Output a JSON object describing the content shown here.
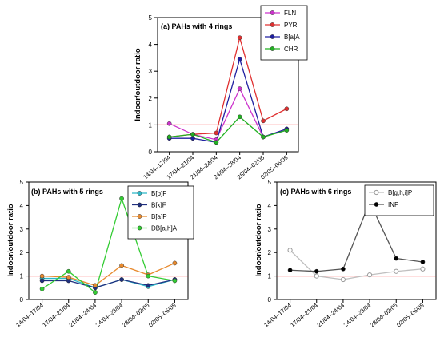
{
  "chart_data": [
    {
      "type": "line",
      "title": "(a) PAHs with 4 rings",
      "xlabel": "",
      "ylabel": "Indoor/outdoor  ratio",
      "categories": [
        "14/04–17/04",
        "17/04–21/04",
        "21/04–24/04",
        "24/04–28/04",
        "28/04–02/05",
        "02/05–06/05"
      ],
      "ylim": [
        0,
        5
      ],
      "yticks": [
        "0",
        "1",
        "2",
        "3",
        "4",
        "5"
      ],
      "reference_line": 1,
      "reference_color": "#ff0000",
      "legend_position": "top-right",
      "series": [
        {
          "name": "FLN",
          "color": "#cc33cc",
          "marker": "filled-circle",
          "values": [
            1.05,
            0.65,
            0.45,
            2.35,
            0.55,
            0.85
          ]
        },
        {
          "name": "PYR",
          "color": "#e03030",
          "marker": "filled-circle",
          "values": [
            0.55,
            0.65,
            0.7,
            4.25,
            1.15,
            1.6
          ]
        },
        {
          "name": "B[a]A",
          "color": "#1f1fa0",
          "marker": "filled-circle",
          "values": [
            0.5,
            0.5,
            0.35,
            3.45,
            0.55,
            0.85
          ]
        },
        {
          "name": "CHR",
          "color": "#22b022",
          "marker": "filled-circle",
          "values": [
            0.55,
            0.65,
            0.35,
            1.3,
            0.55,
            0.8
          ]
        }
      ]
    },
    {
      "type": "line",
      "title": "(b) PAHs with 5 rings",
      "xlabel": "",
      "ylabel": "Indoor/outdoor  ratio",
      "categories": [
        "14/04–17/04",
        "17/04–21/04",
        "21/04–24/04",
        "24/04–28/04",
        "28/04–02/05",
        "02/05–06/05"
      ],
      "ylim": [
        0,
        5
      ],
      "yticks": [
        "0",
        "1",
        "2",
        "3",
        "4",
        "5"
      ],
      "reference_line": 1,
      "reference_color": "#ff0000",
      "legend_position": "top-right",
      "series": [
        {
          "name": "B[b]F",
          "color": "#2bb7c7",
          "marker": "filled-circle",
          "values": [
            0.9,
            0.9,
            0.5,
            0.85,
            0.55,
            0.85
          ]
        },
        {
          "name": "B[k]F",
          "color": "#1f2f7f",
          "marker": "filled-circle",
          "values": [
            0.8,
            0.8,
            0.5,
            0.85,
            0.6,
            0.85
          ]
        },
        {
          "name": "B[a]P",
          "color": "#e88a2e",
          "marker": "filled-circle",
          "values": [
            1.0,
            0.95,
            0.6,
            1.45,
            1.05,
            1.55
          ]
        },
        {
          "name": "DB[a,h]A",
          "color": "#33cc33",
          "marker": "filled-circle",
          "values": [
            0.45,
            1.2,
            0.3,
            4.3,
            1.0,
            0.8
          ]
        }
      ]
    },
    {
      "type": "line",
      "title": "(c) PAHs with 6 rings",
      "xlabel": "",
      "ylabel": "Indoor/outdoor  ratio",
      "categories": [
        "14/04–17/04",
        "17/04–21/04",
        "21/04–24/04",
        "24/04–28/04",
        "28/04–02/05",
        "02/05–06/05"
      ],
      "ylim": [
        0,
        5
      ],
      "yticks": [
        "0",
        "1",
        "2",
        "3",
        "4",
        "5"
      ],
      "reference_line": 1,
      "reference_color": "#ff0000",
      "legend_position": "top-right",
      "series": [
        {
          "name": "B[g,h,i]P",
          "color": "#bfbfbf",
          "marker": "open-circle",
          "values": [
            2.1,
            1.0,
            0.85,
            1.05,
            1.2,
            1.3
          ]
        },
        {
          "name": "INP",
          "color": "#000000",
          "line_color": "#555555",
          "marker": "filled-circle",
          "values": [
            1.25,
            1.2,
            1.3,
            4.15,
            1.75,
            1.6
          ]
        }
      ]
    }
  ]
}
